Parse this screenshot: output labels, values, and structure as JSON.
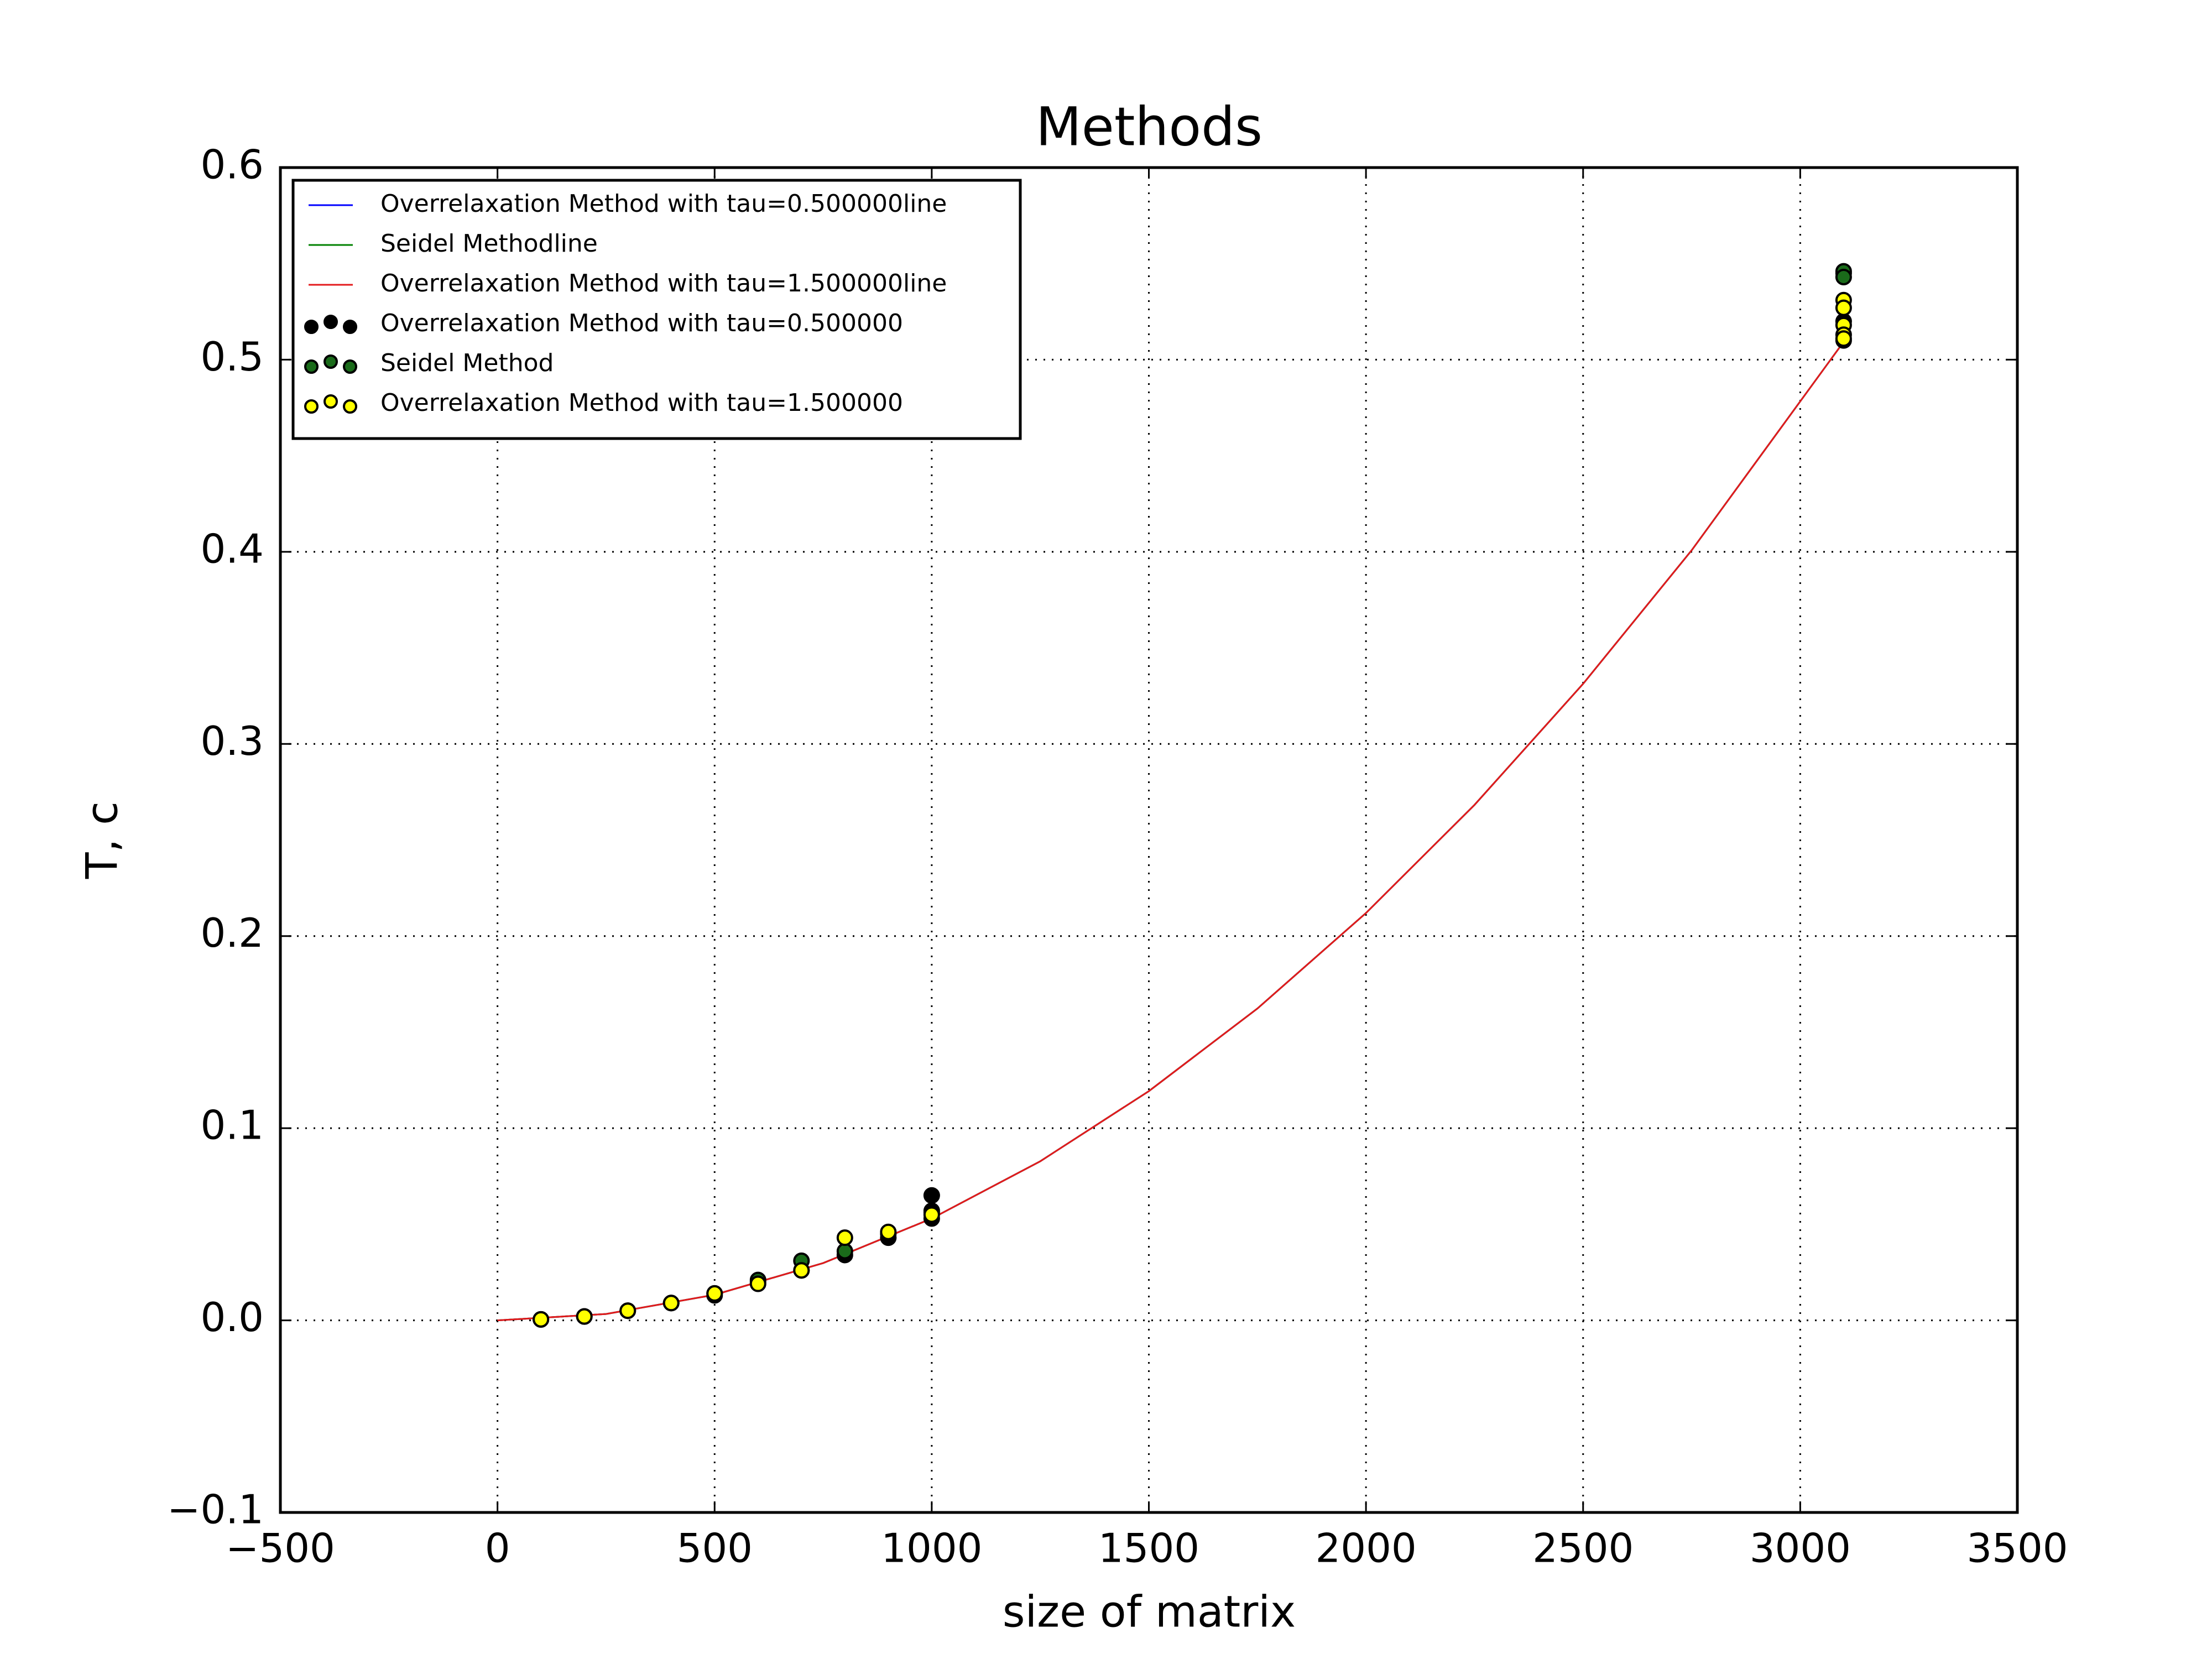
{
  "chart_data": {
    "type": "scatter",
    "title": "Methods",
    "x_label": "size of matrix",
    "y_label": "T, c",
    "xlim": [
      -500,
      3500
    ],
    "ylim": [
      -0.1,
      0.6
    ],
    "xticks": [
      {
        "value": -500,
        "label": "−500"
      },
      0,
      500,
      1000,
      1500,
      2000,
      2500,
      3000,
      3500
    ],
    "yticks": [
      {
        "value": -0.1,
        "label": "−0.1"
      },
      {
        "value": 0,
        "label": "0.0"
      },
      0.1,
      0.2,
      0.3,
      0.4,
      0.5,
      0.6
    ],
    "grid": true,
    "legend": "upper left",
    "series": [
      {
        "name": "Overrelaxation Method with tau=0.500000line",
        "style": "line",
        "color": "#0000ff",
        "x": [
          0,
          250,
          500,
          750,
          1000,
          1250,
          1500,
          1750,
          2000,
          2250,
          2500,
          2750,
          3100
        ],
        "values": [
          0,
          0.0033,
          0.0133,
          0.0298,
          0.053,
          0.0828,
          0.1193,
          0.1623,
          0.212,
          0.2683,
          0.3313,
          0.4008,
          0.5093
        ]
      },
      {
        "name": "Seidel Methodline",
        "style": "line",
        "color": "#008000",
        "x": [
          0,
          250,
          500,
          750,
          1000,
          1250,
          1500,
          1750,
          2000,
          2250,
          2500,
          2750,
          3100
        ],
        "values": [
          0,
          0.0033,
          0.0133,
          0.0298,
          0.053,
          0.0828,
          0.1193,
          0.1623,
          0.212,
          0.2683,
          0.3313,
          0.4008,
          0.5093
        ]
      },
      {
        "name": "Overrelaxation Method with tau=1.500000line",
        "style": "line",
        "color": "#e31a1c",
        "x": [
          0,
          250,
          500,
          750,
          1000,
          1250,
          1500,
          1750,
          2000,
          2250,
          2500,
          2750,
          3100
        ],
        "values": [
          0,
          0.0033,
          0.0133,
          0.0298,
          0.053,
          0.0828,
          0.1193,
          0.1623,
          0.212,
          0.2683,
          0.3313,
          0.4008,
          0.5093
        ]
      },
      {
        "name": "Overrelaxation Method with tau=0.500000",
        "style": "scatter",
        "color": "#000000",
        "x": [
          100,
          200,
          300,
          400,
          500,
          600,
          700,
          800,
          900,
          1000,
          1000,
          1000,
          3100,
          3100,
          3100
        ],
        "values": [
          0.0005,
          0.002,
          0.005,
          0.009,
          0.013,
          0.02,
          0.026,
          0.034,
          0.043,
          0.065,
          0.057,
          0.053,
          0.545,
          0.51,
          0.52
        ]
      },
      {
        "name": "Seidel Method",
        "style": "scatter",
        "color": "#1a6b1a",
        "x": [
          100,
          200,
          300,
          400,
          500,
          600,
          700,
          800,
          900,
          1000,
          3100,
          3100
        ],
        "values": [
          0.0005,
          0.002,
          0.005,
          0.009,
          0.014,
          0.021,
          0.031,
          0.036,
          0.045,
          0.056,
          0.546,
          0.543
        ]
      },
      {
        "name": "Overrelaxation Method with tau=1.500000",
        "style": "scatter",
        "color": "#ffff00",
        "x": [
          100,
          200,
          300,
          400,
          500,
          600,
          700,
          800,
          900,
          1000,
          3100,
          3100,
          3100,
          3100,
          3100
        ],
        "values": [
          0.0005,
          0.002,
          0.005,
          0.009,
          0.014,
          0.019,
          0.026,
          0.043,
          0.046,
          0.055,
          0.531,
          0.527,
          0.518,
          0.513,
          0.511
        ]
      }
    ]
  }
}
